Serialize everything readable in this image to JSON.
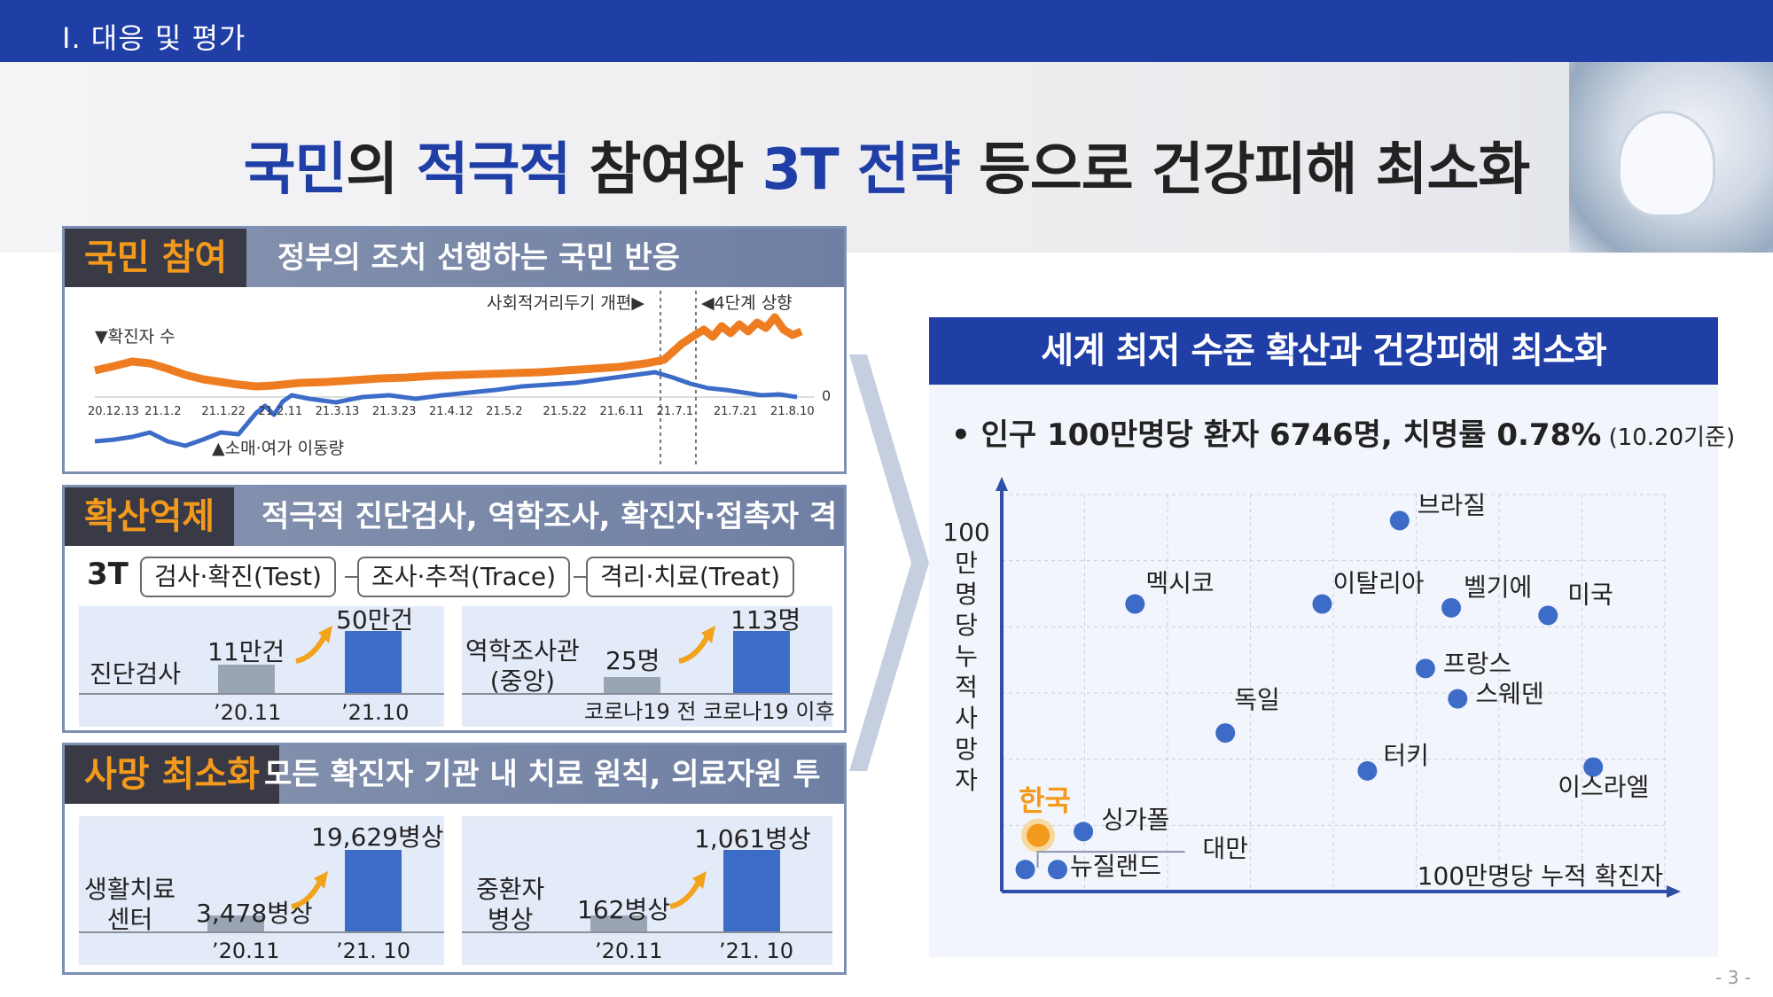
{
  "header": {
    "section": "Ⅰ. 대응 및 평가"
  },
  "headline": {
    "part1": "국민",
    "part2": "의 ",
    "part3": "적극적",
    "part4": " 참여와 ",
    "part5": "3T 전략",
    "part6": " 등으로 건강피해 최소화"
  },
  "panel1": {
    "tag": "국민 참여",
    "subtitle": "정부의 조치 선행하는 국민 반응",
    "label_cases": "▼확진자 수",
    "label_mobility": "▲소매·여가 이동량",
    "annot_distancing": "사회적거리두기 개편▶",
    "annot_level4": "◀4단계 상향",
    "zero": "0",
    "dates": [
      "20.12.13",
      "21.1.2",
      "21.1.22",
      "21.2.11",
      "21.3.13",
      "21.3.23",
      "21.4.12",
      "21.5.2",
      "21.5.22",
      "21.6.11",
      "21.7.1",
      "21.7.21",
      "21.8.10"
    ],
    "colors": {
      "cases": "#ee7d22",
      "mobility": "#3d6cc8"
    }
  },
  "panel2": {
    "tag": "확산억제",
    "subtitle": "적극적 진단검사, 역학조사, 확진자·접촉자 격리",
    "t3": "3T",
    "pills": [
      "검사·확진(Test)",
      "조사·추적(Trace)",
      "격리·치료(Treat)"
    ],
    "box1": {
      "label": "진단검사",
      "before_val": "11만건",
      "after_val": "50만건",
      "before_x": "’20.11",
      "after_x": "’21.10"
    },
    "box2": {
      "label_line1": "역학조사관",
      "label_line2": "(중앙)",
      "before_val": "25명",
      "after_val": "113명",
      "before_x": "코로나19 전",
      "after_x": "코로나19 이후"
    }
  },
  "panel3": {
    "tag": "사망 최소화",
    "subtitle": "모든 확진자 기관 내 치료 원칙, 의료자원 투입 확대",
    "box1": {
      "label_line1": "생활치료",
      "label_line2": "센터",
      "before_val": "3,478병상",
      "after_val": "19,629병상",
      "before_x": "’20.11",
      "after_x": "’21. 10"
    },
    "box2": {
      "label_line1": "중환자",
      "label_line2": "병상",
      "before_val": "162병상",
      "after_val": "1,061병상",
      "before_x": "’20.11",
      "after_x": "’21. 10"
    }
  },
  "right": {
    "title": "세계 최저 수준 확산과 건강피해 최소화",
    "bullet": "• 인구 100만명당 환자 6746명, 치명률 0.78%",
    "bullet_note": " (10.20기준)",
    "chart_data": {
      "type": "scatter",
      "xlabel": "100만명당 누적 확진자",
      "ylabel": "100만명당누적사망자",
      "grid": true,
      "points": [
        {
          "name": "브라질",
          "x": 0.6,
          "y": 0.95,
          "highlight": false
        },
        {
          "name": "멕시코",
          "x": 0.19,
          "y": 0.73,
          "highlight": false
        },
        {
          "name": "이탈리아",
          "x": 0.48,
          "y": 0.73,
          "highlight": false
        },
        {
          "name": "벨기에",
          "x": 0.68,
          "y": 0.72,
          "highlight": false
        },
        {
          "name": "미국",
          "x": 0.83,
          "y": 0.7,
          "highlight": false
        },
        {
          "name": "프랑스",
          "x": 0.64,
          "y": 0.56,
          "highlight": false
        },
        {
          "name": "스웨덴",
          "x": 0.69,
          "y": 0.48,
          "highlight": false
        },
        {
          "name": "독일",
          "x": 0.33,
          "y": 0.39,
          "highlight": false
        },
        {
          "name": "터키",
          "x": 0.55,
          "y": 0.29,
          "highlight": false
        },
        {
          "name": "이스라엘",
          "x": 0.9,
          "y": 0.3,
          "highlight": false
        },
        {
          "name": "싱가폴",
          "x": 0.11,
          "y": 0.13,
          "highlight": false
        },
        {
          "name": "한국",
          "x": 0.04,
          "y": 0.12,
          "highlight": true
        },
        {
          "name": "뉴질랜드",
          "x": 0.07,
          "y": 0.03,
          "highlight": false
        },
        {
          "name": "대만",
          "x": 0.02,
          "y": 0.03,
          "highlight": false
        }
      ],
      "colors": {
        "point": "#3d6cc8",
        "highlight": "#f39a1c"
      }
    }
  },
  "page_number": "- 3 -"
}
